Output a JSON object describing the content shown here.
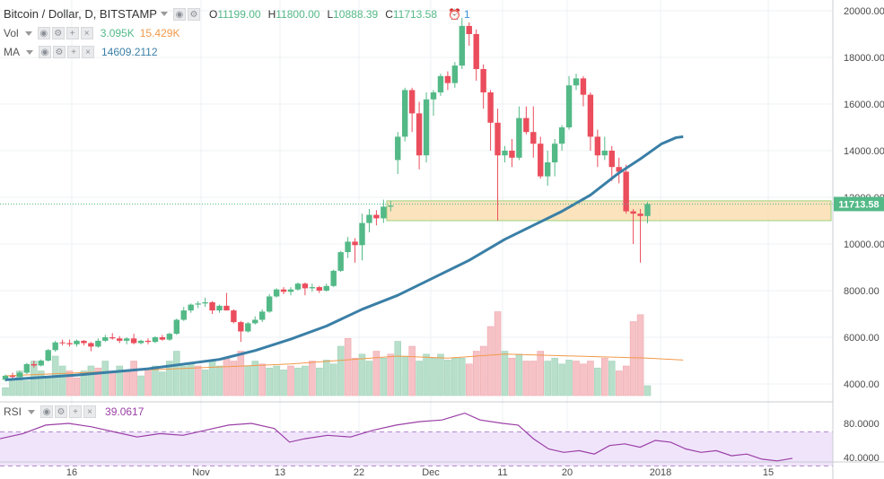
{
  "header": {
    "symbol_title": "Bitcoin / Dollar, D, BITSTAMP",
    "ohlc": [
      {
        "k": "O",
        "v": "11199.00"
      },
      {
        "k": "H",
        "v": "11800.00"
      },
      {
        "k": "L",
        "v": "10888.39"
      },
      {
        "k": "C",
        "v": "11713.58"
      }
    ],
    "alert_count": "1",
    "vol_label": "Vol",
    "vol_value": "3.095K",
    "vol_ma_value": "15.429K",
    "ma_label": "MA",
    "ma_value": "14609.2112",
    "rsi_label": "RSI",
    "rsi_value": "39.0617"
  },
  "colors": {
    "up": "#53b987",
    "down": "#eb4d5c",
    "ma_line": "#3a7fa6",
    "vol_up": "#b7dfca",
    "vol_down": "#f6c2c6",
    "vol_ma": "#f2994a",
    "rsi_line": "#9b3fa6",
    "rsi_band": "#f0e4fb",
    "zone_fill": "#f9d9a7",
    "zone_stroke": "#9fd17a",
    "price_tag": "#53b987"
  },
  "chart_data": {
    "type": "candlestick",
    "price_axis": {
      "ticks": [
        "4000.00",
        "6000.00",
        "8000.00",
        "10000.00",
        "12000.00",
        "14000.00",
        "16000.00",
        "18000.00",
        "20000.00"
      ]
    },
    "x_axis": {
      "ticks": [
        "16",
        "Nov",
        "13",
        "22",
        "Dec",
        "11",
        "20",
        "2018",
        "15"
      ]
    },
    "last_price_label": "11713.58",
    "highlight_zone": {
      "low": 11000,
      "high": 11850
    },
    "candles": [
      [
        4180,
        4400,
        4100,
        4350
      ],
      [
        4350,
        4480,
        4250,
        4300
      ],
      [
        4300,
        4550,
        4250,
        4480
      ],
      [
        4480,
        4900,
        4420,
        4850
      ],
      [
        4850,
        5000,
        4700,
        4790
      ],
      [
        4790,
        5050,
        4750,
        5000
      ],
      [
        5000,
        5500,
        4950,
        5450
      ],
      [
        5450,
        5850,
        5380,
        5780
      ],
      [
        5780,
        5900,
        5650,
        5750
      ],
      [
        5750,
        5900,
        5600,
        5700
      ],
      [
        5700,
        5900,
        5600,
        5850
      ],
      [
        5850,
        5880,
        5650,
        5750
      ],
      [
        5750,
        5800,
        5400,
        5600
      ],
      [
        5600,
        5950,
        5550,
        5850
      ],
      [
        5850,
        6100,
        5800,
        6000
      ],
      [
        6000,
        6180,
        5900,
        5950
      ],
      [
        5950,
        6050,
        5750,
        5850
      ],
      [
        5850,
        6000,
        5700,
        5950
      ],
      [
        5950,
        6150,
        5700,
        5750
      ],
      [
        5750,
        5900,
        5700,
        5850
      ],
      [
        5850,
        5950,
        5700,
        5800
      ],
      [
        5800,
        6050,
        5750,
        6000
      ],
      [
        6000,
        6100,
        5850,
        5900
      ],
      [
        5900,
        6200,
        5850,
        6150
      ],
      [
        6150,
        6800,
        6100,
        6750
      ],
      [
        6750,
        7300,
        6700,
        7150
      ],
      [
        7150,
        7450,
        7050,
        7400
      ],
      [
        7400,
        7550,
        7250,
        7450
      ],
      [
        7450,
        7700,
        7300,
        7500
      ],
      [
        7500,
        7550,
        7000,
        7150
      ],
      [
        7150,
        7400,
        7050,
        7350
      ],
      [
        7350,
        7900,
        7300,
        7150
      ],
      [
        7150,
        7200,
        6600,
        6650
      ],
      [
        6650,
        6700,
        5800,
        6250
      ],
      [
        6250,
        6650,
        6200,
        6600
      ],
      [
        6600,
        6900,
        6550,
        6750
      ],
      [
        6750,
        7200,
        6650,
        7100
      ],
      [
        7100,
        7850,
        7050,
        7750
      ],
      [
        7750,
        8100,
        7700,
        8050
      ],
      [
        8050,
        8150,
        7850,
        7950
      ],
      [
        7950,
        8150,
        7800,
        8050
      ],
      [
        8050,
        8350,
        8000,
        8300
      ],
      [
        8300,
        8350,
        7800,
        8100
      ],
      [
        8100,
        8300,
        7950,
        8150
      ],
      [
        8150,
        8200,
        7900,
        8000
      ],
      [
        8000,
        8300,
        7950,
        8200
      ],
      [
        8200,
        8900,
        8150,
        8850
      ],
      [
        8850,
        9700,
        8800,
        9650
      ],
      [
        9650,
        10300,
        9400,
        10100
      ],
      [
        10100,
        10250,
        9200,
        9950
      ],
      [
        9950,
        11300,
        9300,
        10900
      ],
      [
        10900,
        11500,
        10500,
        11250
      ],
      [
        11250,
        11450,
        10800,
        11100
      ],
      [
        11100,
        11900,
        10900,
        11600
      ],
      [
        11600,
        11850,
        11400,
        11650
      ],
      [
        13600,
        14800,
        13000,
        14600
      ],
      [
        14600,
        16700,
        14400,
        16600
      ],
      [
        16600,
        16700,
        14800,
        15600
      ],
      [
        15600,
        16100,
        13200,
        13800
      ],
      [
        13800,
        16500,
        13500,
        16200
      ],
      [
        16200,
        16600,
        15500,
        16500
      ],
      [
        16500,
        17300,
        16350,
        17200
      ],
      [
        17200,
        17400,
        16600,
        16900
      ],
      [
        16900,
        17800,
        16700,
        17650
      ],
      [
        17650,
        19700,
        17500,
        19350
      ],
      [
        19350,
        19500,
        18500,
        19000
      ],
      [
        19000,
        19200,
        17000,
        17500
      ],
      [
        17500,
        17700,
        15800,
        16500
      ],
      [
        16500,
        16600,
        14000,
        15200
      ],
      [
        15200,
        15800,
        11000,
        13800
      ],
      [
        13800,
        14200,
        13500,
        14000
      ],
      [
        14000,
        14500,
        13300,
        13700
      ],
      [
        13700,
        15900,
        13600,
        15400
      ],
      [
        15400,
        15900,
        14700,
        14800
      ],
      [
        14800,
        15900,
        13700,
        14300
      ],
      [
        14300,
        14600,
        12800,
        12900
      ],
      [
        12900,
        14000,
        12500,
        13500
      ],
      [
        13500,
        14500,
        12900,
        14300
      ],
      [
        14300,
        15100,
        14000,
        15000
      ],
      [
        15000,
        17200,
        14900,
        16800
      ],
      [
        16800,
        17300,
        16600,
        17100
      ],
      [
        17100,
        17200,
        15900,
        16400
      ],
      [
        16400,
        16500,
        14000,
        14600
      ],
      [
        14600,
        14900,
        13300,
        13800
      ],
      [
        13800,
        14600,
        13600,
        14000
      ],
      [
        14000,
        14200,
        12700,
        13300
      ],
      [
        13300,
        13700,
        12600,
        13100
      ],
      [
        13100,
        13400,
        11300,
        11400
      ],
      [
        11400,
        11500,
        10000,
        11300
      ],
      [
        11300,
        11500,
        9200,
        11200
      ],
      [
        11199,
        11800,
        10888.39,
        11713.58
      ]
    ],
    "ma_line": [
      [
        0,
        4180
      ],
      [
        10,
        4380
      ],
      [
        20,
        4650
      ],
      [
        30,
        5050
      ],
      [
        35,
        5430
      ],
      [
        40,
        5920
      ],
      [
        45,
        6480
      ],
      [
        50,
        7200
      ],
      [
        55,
        7800
      ],
      [
        60,
        8550
      ],
      [
        65,
        9300
      ],
      [
        70,
        10200
      ],
      [
        74,
        10800
      ],
      [
        78,
        11400
      ],
      [
        82,
        12100
      ],
      [
        86,
        13050
      ],
      [
        89,
        13650
      ],
      [
        92,
        14300
      ],
      [
        94,
        14560
      ],
      [
        95,
        14600
      ]
    ],
    "volume_bars": [
      [
        0.08,
        1
      ],
      [
        0.15,
        1
      ],
      [
        0.25,
        1
      ],
      [
        0.15,
        1
      ],
      [
        0.35,
        1
      ],
      [
        0.25,
        1
      ],
      [
        0.18,
        1
      ],
      [
        0.4,
        1
      ],
      [
        0.3,
        1
      ],
      [
        0.25,
        0
      ],
      [
        0.18,
        0
      ],
      [
        0.25,
        1
      ],
      [
        0.3,
        1
      ],
      [
        0.28,
        0
      ],
      [
        0.35,
        1
      ],
      [
        0.25,
        0
      ],
      [
        0.3,
        1
      ],
      [
        0.26,
        0
      ],
      [
        0.35,
        0
      ],
      [
        0.2,
        1
      ],
      [
        0.25,
        0
      ],
      [
        0.3,
        1
      ],
      [
        0.24,
        1
      ],
      [
        0.35,
        1
      ],
      [
        0.45,
        1
      ],
      [
        0.3,
        1
      ],
      [
        0.32,
        1
      ],
      [
        0.3,
        0
      ],
      [
        0.26,
        1
      ],
      [
        0.35,
        1
      ],
      [
        0.3,
        1
      ],
      [
        0.38,
        0
      ],
      [
        0.35,
        0
      ],
      [
        0.45,
        0
      ],
      [
        0.3,
        1
      ],
      [
        0.35,
        1
      ],
      [
        0.32,
        0
      ],
      [
        0.28,
        1
      ],
      [
        0.3,
        1
      ],
      [
        0.26,
        1
      ],
      [
        0.3,
        0
      ],
      [
        0.28,
        1
      ],
      [
        0.3,
        1
      ],
      [
        0.35,
        0
      ],
      [
        0.28,
        1
      ],
      [
        0.36,
        1
      ],
      [
        0.32,
        1
      ],
      [
        0.5,
        1
      ],
      [
        0.58,
        0
      ],
      [
        0.38,
        0
      ],
      [
        0.42,
        1
      ],
      [
        0.35,
        1
      ],
      [
        0.45,
        0
      ],
      [
        0.38,
        1
      ],
      [
        0.42,
        0
      ],
      [
        0.55,
        1
      ],
      [
        0.4,
        1
      ],
      [
        0.5,
        0
      ],
      [
        0.35,
        1
      ],
      [
        0.42,
        1
      ],
      [
        0.38,
        1
      ],
      [
        0.42,
        1
      ],
      [
        0.36,
        1
      ],
      [
        0.38,
        1
      ],
      [
        0.38,
        1
      ],
      [
        0.32,
        0
      ],
      [
        0.45,
        0
      ],
      [
        0.5,
        0
      ],
      [
        0.7,
        0
      ],
      [
        0.85,
        0
      ],
      [
        0.45,
        1
      ],
      [
        0.38,
        0
      ],
      [
        0.42,
        1
      ],
      [
        0.35,
        0
      ],
      [
        0.35,
        0
      ],
      [
        0.45,
        0
      ],
      [
        0.35,
        1
      ],
      [
        0.38,
        1
      ],
      [
        0.32,
        1
      ],
      [
        0.36,
        1
      ],
      [
        0.35,
        0
      ],
      [
        0.32,
        0
      ],
      [
        0.35,
        0
      ],
      [
        0.28,
        1
      ],
      [
        0.38,
        0
      ],
      [
        0.35,
        1
      ],
      [
        0.25,
        0
      ],
      [
        0.3,
        0
      ],
      [
        0.75,
        0
      ],
      [
        0.82,
        0
      ],
      [
        0.1,
        1
      ]
    ],
    "volume_ma": [
      [
        0,
        0.2
      ],
      [
        20,
        0.26
      ],
      [
        40,
        0.32
      ],
      [
        55,
        0.4
      ],
      [
        62,
        0.38
      ],
      [
        70,
        0.42
      ],
      [
        80,
        0.4
      ],
      [
        90,
        0.38
      ],
      [
        95,
        0.36
      ]
    ],
    "rsi_axis": {
      "ticks": [
        "80.0000",
        "40.0000"
      ],
      "band": [
        30,
        70
      ]
    },
    "rsi": [
      [
        0,
        62
      ],
      [
        3,
        68
      ],
      [
        6,
        78
      ],
      [
        9,
        80
      ],
      [
        12,
        76
      ],
      [
        15,
        70
      ],
      [
        18,
        64
      ],
      [
        21,
        68
      ],
      [
        24,
        66
      ],
      [
        27,
        72
      ],
      [
        30,
        78
      ],
      [
        33,
        80
      ],
      [
        36,
        74
      ],
      [
        38,
        58
      ],
      [
        40,
        62
      ],
      [
        43,
        66
      ],
      [
        46,
        64
      ],
      [
        49,
        72
      ],
      [
        52,
        78
      ],
      [
        55,
        82
      ],
      [
        58,
        84
      ],
      [
        61,
        92
      ],
      [
        63,
        84
      ],
      [
        66,
        80
      ],
      [
        68,
        78
      ],
      [
        70,
        62
      ],
      [
        72,
        50
      ],
      [
        74,
        46
      ],
      [
        76,
        48
      ],
      [
        78,
        44
      ],
      [
        80,
        54
      ],
      [
        82,
        56
      ],
      [
        84,
        52
      ],
      [
        86,
        60
      ],
      [
        88,
        58
      ],
      [
        90,
        50
      ],
      [
        92,
        46
      ],
      [
        94,
        48
      ],
      [
        96,
        42
      ],
      [
        98,
        44
      ],
      [
        100,
        38
      ],
      [
        102,
        36
      ],
      [
        104,
        39
      ]
    ]
  }
}
